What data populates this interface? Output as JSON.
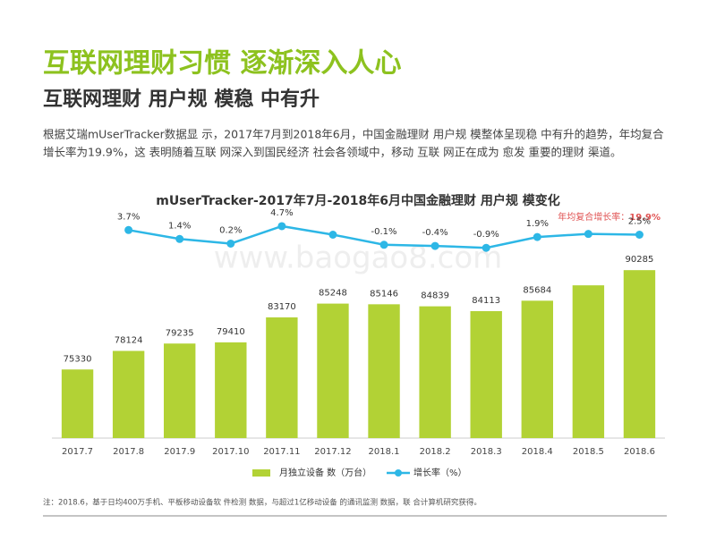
{
  "header": {
    "title": "互联网理财习惯 逐渐深入人心",
    "subtitle": "互联网理财 用户规 模稳 中有升",
    "paragraph": [
      "根据艾瑞mUserTracker数据显 示，2017年7月到2018年6月，中国金融理财 用户规 模整体呈现稳 中有升的趋势，年均复合",
      "增长率为19.9%，这 表明随着互联 网深入到国民经济 社会各领域中，移动 互联 网正在成为 愈发 重要的理财 渠道。"
    ]
  },
  "watermark": "www.baogao8.com",
  "chart_data": {
    "type": "bar",
    "title": "mUserTracker-2017年7月-2018年6月中国金融理财 用户规 模变化",
    "annotation": {
      "label": "年均复合增长率：",
      "value": "19.9%"
    },
    "categories": [
      "2017.7",
      "2017.8",
      "2017.9",
      "2017.10",
      "2017.11",
      "2017.12",
      "2018.1",
      "2018.2",
      "2018.3",
      "2018.4",
      "2018.5",
      "2018.6"
    ],
    "series": [
      {
        "name": "月独立设备 数（万台）",
        "type": "bar",
        "color": "#b2d235",
        "values": [
          75330,
          78124,
          79235,
          79410,
          83170,
          85248,
          85146,
          84839,
          84113,
          85684,
          88000,
          90285
        ],
        "value_labels": [
          "75330",
          "78124",
          "79235",
          "79410",
          "83170",
          "85248",
          "85146",
          "84839",
          "84113",
          "85684",
          null,
          "90285"
        ]
      },
      {
        "name": "增长率（%）",
        "type": "line",
        "axis": "y2",
        "color": "#2db7e6",
        "values": [
          null,
          3.7,
          1.4,
          0.2,
          4.7,
          2.5,
          -0.1,
          -0.4,
          -0.9,
          1.9,
          2.7,
          2.5
        ],
        "value_labels": [
          null,
          "3.7%",
          "1.4%",
          "0.2%",
          "4.7%",
          null,
          "-0.1%",
          "-0.4%",
          "-0.9%",
          "1.9%",
          null,
          "2.5%"
        ]
      }
    ],
    "ylim": [
      65000,
      100000
    ],
    "y2lim": [
      -50,
      10
    ],
    "legend": "bottom"
  },
  "footnote": "注：2018.6，基于日均400万手机、平板移动设备软 件检测 数据，与超过1亿移动设备 的通讯监测 数据，联 合计算机研究获得。"
}
